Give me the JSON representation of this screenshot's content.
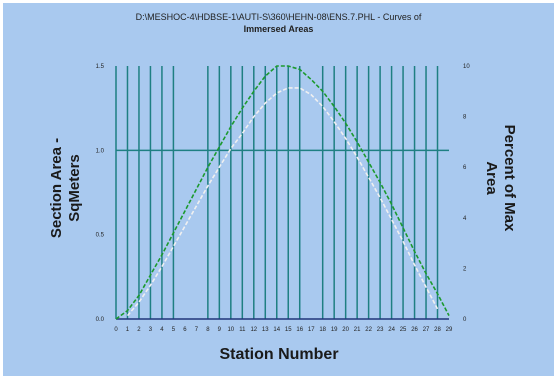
{
  "chart_data": {
    "type": "line",
    "title_line1": "D:\\MESHOC-4\\HDBSE-1\\AUTI-S\\360\\HEHN-08\\ENS.7.PHL - Curves of",
    "title_line2": "Immersed Areas",
    "xlabel": "Station Number",
    "ylabel_left_line1": "Section Area -",
    "ylabel_left_line2": "SqMeters",
    "ylabel_right_line1": "Percent of Max",
    "ylabel_right_line2": "Area",
    "x_ticks": [
      "0",
      "1",
      "2",
      "3",
      "4",
      "5",
      "6",
      "7",
      "8",
      "9",
      "10",
      "11",
      "12",
      "13",
      "14",
      "15",
      "16",
      "17",
      "18",
      "19",
      "20",
      "21",
      "22",
      "23",
      "24",
      "25",
      "26",
      "27",
      "28",
      "29"
    ],
    "y_left_ticks": [
      "0.0",
      "0.5",
      "1.0",
      "1.5"
    ],
    "y_right_ticks": [
      "0",
      "2",
      "4",
      "6",
      "8",
      "10"
    ],
    "ylim_left": [
      0,
      1.5
    ],
    "ylim_right": [
      0,
      10
    ],
    "xlim": [
      0,
      29
    ],
    "gridlines_x": [
      0,
      1,
      2,
      3,
      4,
      5,
      8,
      9,
      10,
      11,
      12,
      13,
      14,
      15,
      16,
      18,
      19,
      20,
      21,
      22,
      23,
      24,
      25,
      26,
      27,
      28
    ],
    "gridlines_y_left": [
      1.0
    ],
    "series": [
      {
        "style": "dashed",
        "color": "#1c9a2e",
        "x": [
          0,
          1,
          2,
          3,
          4,
          5,
          6,
          7,
          8,
          9,
          10,
          11,
          12,
          13,
          14,
          15,
          16,
          17,
          18,
          19,
          20,
          21,
          22,
          23,
          24,
          25,
          26,
          27,
          28,
          29
        ],
        "values": [
          0.0,
          0.05,
          0.14,
          0.26,
          0.38,
          0.51,
          0.64,
          0.77,
          0.9,
          1.02,
          1.14,
          1.25,
          1.35,
          1.44,
          1.5,
          1.5,
          1.48,
          1.42,
          1.35,
          1.26,
          1.16,
          1.05,
          0.93,
          0.81,
          0.68,
          0.54,
          0.4,
          0.27,
          0.15,
          0.02
        ]
      },
      {
        "style": "dashed",
        "color": "#f0f0f0",
        "x": [
          1,
          2,
          3,
          4,
          5,
          6,
          7,
          8,
          9,
          10,
          11,
          12,
          13,
          14,
          15,
          16,
          17,
          18,
          19,
          20,
          21,
          22,
          23,
          24,
          25,
          26,
          27,
          28
        ],
        "values": [
          0.02,
          0.1,
          0.2,
          0.31,
          0.43,
          0.55,
          0.67,
          0.79,
          0.9,
          1.01,
          1.1,
          1.2,
          1.28,
          1.34,
          1.37,
          1.37,
          1.33,
          1.26,
          1.17,
          1.07,
          0.96,
          0.84,
          0.72,
          0.59,
          0.46,
          0.32,
          0.19,
          0.06
        ]
      }
    ]
  },
  "colors": {
    "background": "#a9c9ef",
    "gridline": "#1e7f82",
    "axis": "#20357a"
  }
}
